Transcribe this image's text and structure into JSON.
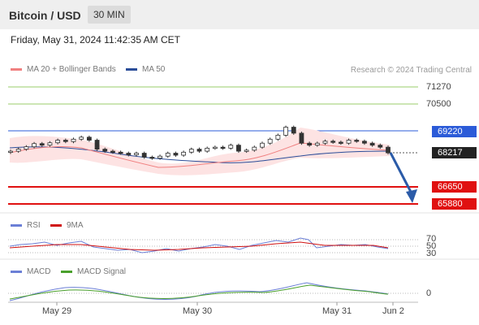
{
  "header": {
    "pair": "Bitcoin / USD",
    "timeframe": "30 MIN"
  },
  "datetime": "Friday, May 31, 2024 11:42:35 AM CET",
  "legend": {
    "ma20": "MA 20 + Bollinger Bands",
    "ma50": "MA 50",
    "rsi": "RSI",
    "rsi_ma": "9MA",
    "macd": "MACD",
    "macd_signal": "MACD Signal"
  },
  "research": "Research © 2024 Trading Central",
  "colors": {
    "ma20": "#f08080",
    "ma50": "#2b4d99",
    "resistance": "#9acd6a",
    "pivot": "#2b5bd8",
    "support": "#e01010",
    "current": "#222222",
    "rsi": "#6b7fd6",
    "rsi_ma": "#d01010",
    "macd": "#6b7fd6",
    "macd_signal": "#4aa02c"
  },
  "levels": {
    "r2": "71270",
    "r1": "70500",
    "pivot": "69220",
    "current": "68217",
    "s1": "66650",
    "s2": "65880"
  },
  "rsi_levels": {
    "l70": "70",
    "l50": "50",
    "l30": "30"
  },
  "macd_zero": "0",
  "x_labels": [
    "May 29",
    "May 30",
    "May 31",
    "Jun 2"
  ],
  "chart_data": {
    "type": "candlestick",
    "y_range": [
      65500,
      72000
    ],
    "price_series_approx": [
      68300,
      68400,
      68520,
      68680,
      68600,
      68720,
      68850,
      68780,
      68900,
      69000,
      68850,
      68400,
      68300,
      68250,
      68200,
      68120,
      68200,
      68000,
      67950,
      68050,
      68200,
      68100,
      68250,
      68400,
      68300,
      68450,
      68500,
      68450,
      68600,
      68300,
      68350,
      68500,
      68700,
      68900,
      69100,
      69500,
      69200,
      68700,
      68600,
      68700,
      68800,
      68750,
      68700,
      68850,
      68800,
      68700,
      68600,
      68500,
      68217
    ],
    "projection": {
      "from": 68217,
      "to": 66650
    },
    "key_levels": [
      71270,
      70500,
      69220,
      68217,
      66650,
      65880
    ],
    "rsi": {
      "levels": [
        70,
        50,
        30
      ]
    },
    "macd": {
      "zero": 0
    },
    "x_ticks": [
      "May 29",
      "May 30",
      "May 31",
      "Jun 2"
    ]
  }
}
